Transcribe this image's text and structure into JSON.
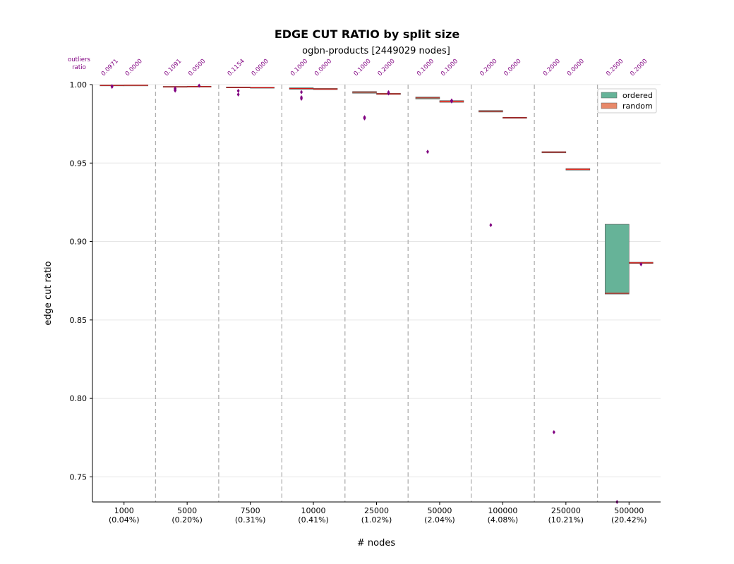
{
  "chart_data": {
    "type": "box",
    "title": "EDGE CUT RATIO by split size",
    "subtitle": "ogbn-products [2449029 nodes]",
    "xlabel": "# nodes",
    "ylabel": "edge cut ratio",
    "ylim": [
      0.734,
      1.0
    ],
    "yticks": [
      "1.00",
      "0.95",
      "0.90",
      "0.85",
      "0.80",
      "0.75"
    ],
    "ytick_values": [
      1.0,
      0.95,
      0.9,
      0.85,
      0.8,
      0.75
    ],
    "outliers_label": [
      "outliers",
      "ratio"
    ],
    "grid": "horizontal",
    "legend_position": "top-right",
    "categories": [
      {
        "label": [
          "1000",
          "(0.04%)"
        ]
      },
      {
        "label": [
          "5000",
          "(0.20%)"
        ]
      },
      {
        "label": [
          "7500",
          "(0.31%)"
        ]
      },
      {
        "label": [
          "10000",
          "(0.41%)"
        ]
      },
      {
        "label": [
          "25000",
          "(1.02%)"
        ]
      },
      {
        "label": [
          "50000",
          "(2.04%)"
        ]
      },
      {
        "label": [
          "100000",
          "(4.08%)"
        ]
      },
      {
        "label": [
          "250000",
          "(10.21%)"
        ]
      },
      {
        "label": [
          "500000",
          "(20.42%)"
        ]
      }
    ],
    "series": [
      {
        "name": "ordered",
        "color": "#66b398",
        "boxes": [
          {
            "q1": 0.9993,
            "median": 0.9995,
            "q3": 0.9997,
            "outliers": [
              0.9986,
              0.999
            ],
            "outlier_ratio": "0.0971"
          },
          {
            "q1": 0.9983,
            "median": 0.9986,
            "q3": 0.9989,
            "outliers": [
              0.9962,
              0.9969,
              0.9976
            ],
            "outlier_ratio": "0.1091"
          },
          {
            "q1": 0.9979,
            "median": 0.9982,
            "q3": 0.9985,
            "outliers": [
              0.9937,
              0.996
            ],
            "outlier_ratio": "0.1154"
          },
          {
            "q1": 0.997,
            "median": 0.9975,
            "q3": 0.998,
            "outliers": [
              0.991,
              0.9919,
              0.9952
            ],
            "outlier_ratio": "0.1000"
          },
          {
            "q1": 0.9945,
            "median": 0.9951,
            "q3": 0.9956,
            "outliers": [
              0.9785,
              0.9792
            ],
            "outlier_ratio": "0.1000"
          },
          {
            "q1": 0.9908,
            "median": 0.9915,
            "q3": 0.9921,
            "outliers": [
              0.9572
            ],
            "outlier_ratio": "0.1000"
          },
          {
            "q1": 0.9825,
            "median": 0.983,
            "q3": 0.9835,
            "outliers": [
              0.9105
            ],
            "outlier_ratio": "0.2000"
          },
          {
            "q1": 0.9565,
            "median": 0.9569,
            "q3": 0.9573,
            "outliers": [
              0.7785
            ],
            "outlier_ratio": "0.2000"
          },
          {
            "q1": 0.8665,
            "median": 0.867,
            "q3": 0.911,
            "outliers": [
              0.734
            ],
            "outlier_ratio": "0.2500"
          }
        ]
      },
      {
        "name": "random",
        "color": "#e8896a",
        "boxes": [
          {
            "q1": 0.9995,
            "median": 0.9996,
            "q3": 0.9997,
            "outliers": [],
            "outlier_ratio": "0.0000"
          },
          {
            "q1": 0.9984,
            "median": 0.9987,
            "q3": 0.999,
            "outliers": [
              0.9993
            ],
            "outlier_ratio": "0.0500"
          },
          {
            "q1": 0.9977,
            "median": 0.998,
            "q3": 0.9983,
            "outliers": [],
            "outlier_ratio": "0.0000"
          },
          {
            "q1": 0.9968,
            "median": 0.9972,
            "q3": 0.9976,
            "outliers": [],
            "outlier_ratio": "0.0000"
          },
          {
            "q1": 0.9937,
            "median": 0.9941,
            "q3": 0.9945,
            "outliers": [
              0.9944,
              0.9951
            ],
            "outlier_ratio": "0.2000"
          },
          {
            "q1": 0.9887,
            "median": 0.9893,
            "q3": 0.9898,
            "outliers": [
              0.9893,
              0.9899
            ],
            "outlier_ratio": "0.1000"
          },
          {
            "q1": 0.9785,
            "median": 0.9789,
            "q3": 0.9792,
            "outliers": [],
            "outlier_ratio": "0.0000"
          },
          {
            "q1": 0.9455,
            "median": 0.946,
            "q3": 0.9465,
            "outliers": [],
            "outlier_ratio": "0.0000"
          },
          {
            "q1": 0.886,
            "median": 0.8864,
            "q3": 0.8868,
            "outliers": [
              0.8855
            ],
            "outlier_ratio": "0.2000"
          }
        ]
      }
    ]
  }
}
